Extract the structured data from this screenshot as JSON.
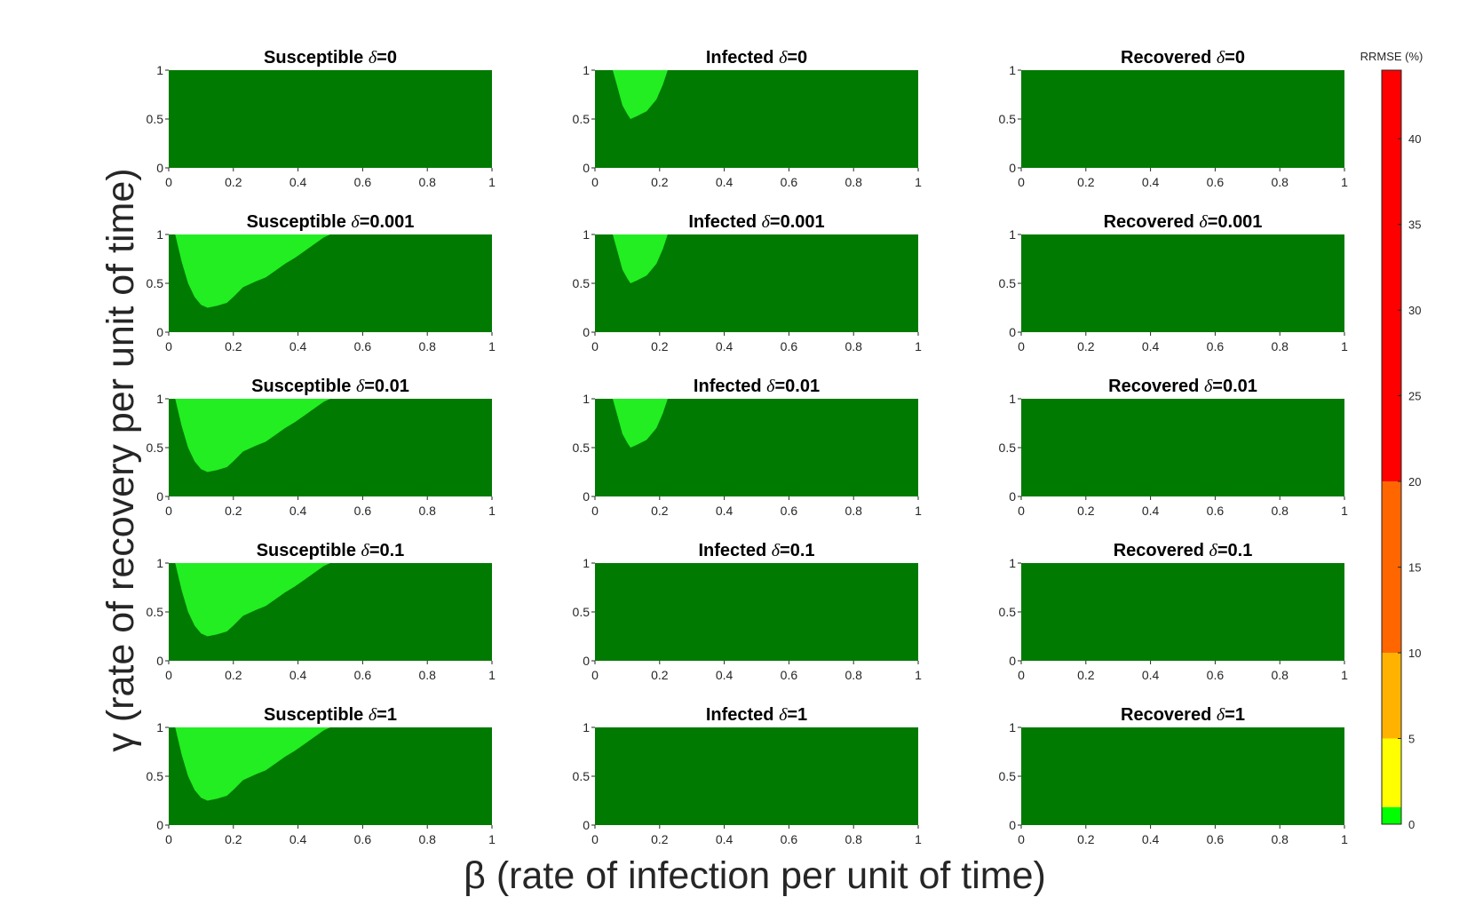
{
  "chart_data": {
    "type": "heatmap",
    "xlabel": "β (rate of infection per unit of time)",
    "ylabel": "γ (rate of recovery per unit of time)",
    "xlim": [
      0,
      1
    ],
    "ylim": [
      0,
      1
    ],
    "x_ticks": [
      "0",
      "0.2",
      "0.4",
      "0.6",
      "0.8",
      "1"
    ],
    "y_ticks": [
      "0",
      "0.5",
      "1"
    ],
    "grid": false,
    "colorbar": {
      "label": "RRMSE (%)",
      "range": [
        0,
        44
      ],
      "ticks": [
        "0",
        "5",
        "10",
        "15",
        "20",
        "25",
        "30",
        "35",
        "40"
      ],
      "bins": [
        {
          "from": 0,
          "to": 1,
          "color": "#00ff00"
        },
        {
          "from": 1,
          "to": 5,
          "color": "#ffff00"
        },
        {
          "from": 5,
          "to": 10,
          "color": "#ffb300"
        },
        {
          "from": 10,
          "to": 20,
          "color": "#ff6600"
        },
        {
          "from": 20,
          "to": 44,
          "color": "#ff0000"
        }
      ]
    },
    "background_color": "#007a00",
    "region_color": "#22ee22",
    "panels": [
      {
        "title": "Susceptible",
        "delta": "=0",
        "region": null
      },
      {
        "title": "Infected",
        "delta": "=0",
        "region": "small"
      },
      {
        "title": "Recovered",
        "delta": "=0",
        "region": null
      },
      {
        "title": "Susceptible",
        "delta": "=0.001",
        "region": "large"
      },
      {
        "title": "Infected",
        "delta": "=0.001",
        "region": "small"
      },
      {
        "title": "Recovered",
        "delta": "=0.001",
        "region": null
      },
      {
        "title": "Susceptible",
        "delta": "=0.01",
        "region": "large"
      },
      {
        "title": "Infected",
        "delta": "=0.01",
        "region": "small"
      },
      {
        "title": "Recovered",
        "delta": "=0.01",
        "region": null
      },
      {
        "title": "Susceptible",
        "delta": "=0.1",
        "region": "large"
      },
      {
        "title": "Infected",
        "delta": "=0.1",
        "region": null
      },
      {
        "title": "Recovered",
        "delta": "=0.1",
        "region": null
      },
      {
        "title": "Susceptible",
        "delta": "=1",
        "region": "large"
      },
      {
        "title": "Infected",
        "delta": "=1",
        "region": null
      },
      {
        "title": "Recovered",
        "delta": "=1",
        "region": null
      }
    ],
    "regions": {
      "large": {
        "description": "light-green boundary curve (β, γ)",
        "boundary": [
          [
            0.02,
            1.0
          ],
          [
            0.04,
            0.72
          ],
          [
            0.06,
            0.5
          ],
          [
            0.08,
            0.36
          ],
          [
            0.1,
            0.28
          ],
          [
            0.12,
            0.25
          ],
          [
            0.15,
            0.27
          ],
          [
            0.18,
            0.3
          ],
          [
            0.2,
            0.36
          ],
          [
            0.23,
            0.46
          ],
          [
            0.27,
            0.52
          ],
          [
            0.3,
            0.56
          ],
          [
            0.33,
            0.63
          ],
          [
            0.36,
            0.7
          ],
          [
            0.39,
            0.76
          ],
          [
            0.42,
            0.83
          ],
          [
            0.45,
            0.9
          ],
          [
            0.48,
            0.97
          ],
          [
            0.5,
            1.0
          ]
        ]
      },
      "small": {
        "description": "light-green boundary curve (β, γ)",
        "boundary": [
          [
            0.055,
            1.0
          ],
          [
            0.07,
            0.82
          ],
          [
            0.085,
            0.64
          ],
          [
            0.1,
            0.55
          ],
          [
            0.11,
            0.5
          ],
          [
            0.13,
            0.53
          ],
          [
            0.16,
            0.58
          ],
          [
            0.19,
            0.7
          ],
          [
            0.21,
            0.85
          ],
          [
            0.225,
            1.0
          ]
        ]
      }
    }
  }
}
